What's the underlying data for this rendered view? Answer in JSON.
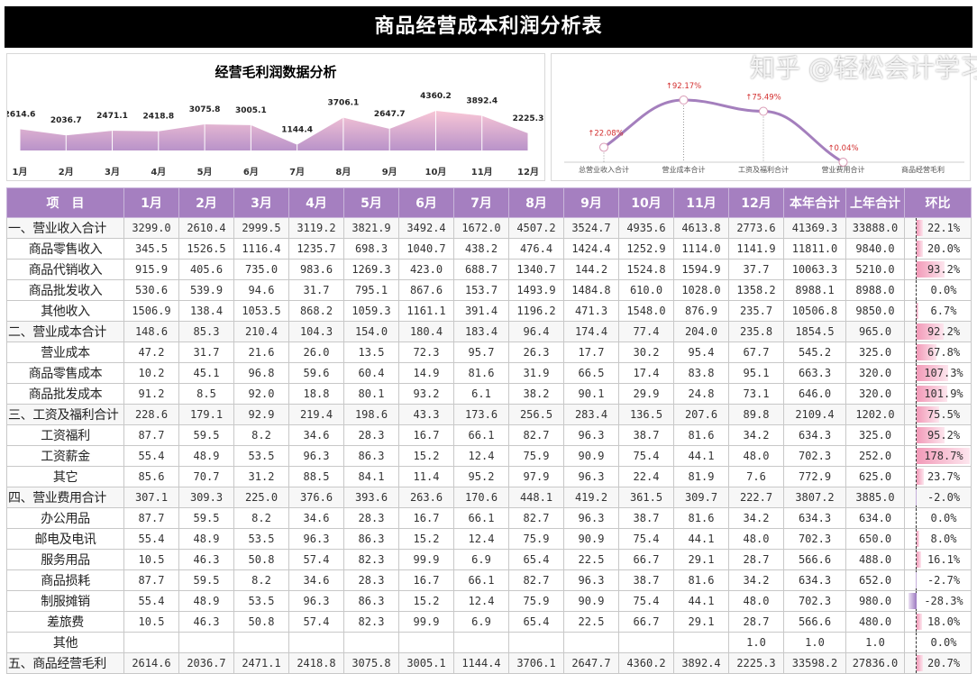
{
  "title": "商品经营成本利润分析表",
  "watermark": "知乎 @轻松会计学习",
  "colors": {
    "header": "#a57fc0",
    "area_top": "#f8c6d6",
    "area_bottom": "#b993c9",
    "line": "#a47fbd",
    "label_red": "#d32f2f",
    "bar_pos": "#f29ab8",
    "bar_neg": "#9c79c0"
  },
  "chart_data": [
    {
      "type": "area",
      "title": "经营毛利润数据分析",
      "categories": [
        "1月",
        "2月",
        "3月",
        "4月",
        "5月",
        "6月",
        "7月",
        "8月",
        "9月",
        "10月",
        "11月",
        "12月"
      ],
      "values": [
        2614.6,
        2036.7,
        2471.1,
        2418.8,
        3075.8,
        3005.1,
        1144.4,
        3706.1,
        2647.7,
        4360.2,
        3892.4,
        2225.3
      ],
      "data_labels": [
        "2614.6",
        "2036.7",
        "2471.1",
        "2418.8",
        "3075.8",
        "3005.1",
        "1144.4",
        "3706.1",
        "2647.7",
        "4360.2",
        "3892.4",
        "2225.3"
      ]
    },
    {
      "type": "line",
      "categories": [
        "总营业收入合计",
        "营业成本合计",
        "工资及福利合计",
        "营业费用合计",
        "商品经营毛利"
      ],
      "values": [
        22.08,
        92.17,
        75.49,
        0.04,
        null
      ],
      "data_labels": [
        "↑22.08%",
        "↑92.17%",
        "↑75.49%",
        "↑0.04%",
        ""
      ]
    }
  ],
  "table": {
    "headers": [
      "项　目",
      "1月",
      "2月",
      "3月",
      "4月",
      "5月",
      "6月",
      "7月",
      "8月",
      "9月",
      "10月",
      "11月",
      "12月",
      "本年合计",
      "上年合计",
      "环比"
    ],
    "rows": [
      {
        "label": "一、营业收入合计",
        "section": true,
        "values": [
          "3299.0",
          "2610.4",
          "2999.5",
          "3119.2",
          "3821.9",
          "3492.4",
          "1672.0",
          "4507.2",
          "3524.7",
          "4935.6",
          "4613.8",
          "2773.6",
          "41369.3",
          "33888.0"
        ],
        "ratio": "22.1%",
        "ratio_value": 22.1
      },
      {
        "label": "商品零售收入",
        "values": [
          "345.5",
          "1526.5",
          "1116.4",
          "1235.7",
          "698.3",
          "1040.7",
          "438.2",
          "476.4",
          "1424.4",
          "1252.9",
          "1114.0",
          "1141.9",
          "11811.0",
          "9840.0"
        ],
        "ratio": "20.0%",
        "ratio_value": 20.0
      },
      {
        "label": "商品代销收入",
        "values": [
          "915.9",
          "405.6",
          "735.0",
          "983.6",
          "1269.3",
          "423.0",
          "688.7",
          "1340.7",
          "144.2",
          "1524.8",
          "1594.9",
          "37.7",
          "10063.3",
          "5210.0"
        ],
        "ratio": "93.2%",
        "ratio_value": 93.2
      },
      {
        "label": "商品批发收入",
        "values": [
          "530.6",
          "539.9",
          "94.6",
          "31.7",
          "795.1",
          "867.6",
          "153.7",
          "1493.9",
          "1484.8",
          "610.0",
          "1028.0",
          "1358.2",
          "8988.1",
          "8988.0"
        ],
        "ratio": "0.0%",
        "ratio_value": 0.0
      },
      {
        "label": "其他收入",
        "values": [
          "1506.9",
          "138.4",
          "1053.5",
          "868.2",
          "1059.3",
          "1161.1",
          "391.4",
          "1196.2",
          "471.3",
          "1548.0",
          "876.9",
          "235.7",
          "10506.8",
          "9850.0"
        ],
        "ratio": "6.7%",
        "ratio_value": 6.7
      },
      {
        "label": "二、营业成本合计",
        "section": true,
        "values": [
          "148.6",
          "85.3",
          "210.4",
          "104.3",
          "154.0",
          "180.4",
          "183.4",
          "96.4",
          "174.4",
          "77.4",
          "204.0",
          "235.8",
          "1854.5",
          "965.0"
        ],
        "ratio": "92.2%",
        "ratio_value": 92.2
      },
      {
        "label": "营业成本",
        "values": [
          "47.2",
          "31.7",
          "21.6",
          "26.0",
          "13.5",
          "72.3",
          "95.7",
          "26.3",
          "17.7",
          "30.2",
          "95.4",
          "67.7",
          "545.2",
          "325.0"
        ],
        "ratio": "67.8%",
        "ratio_value": 67.8
      },
      {
        "label": "商品零售成本",
        "values": [
          "10.2",
          "45.1",
          "96.8",
          "59.6",
          "60.4",
          "14.9",
          "81.6",
          "31.9",
          "66.5",
          "17.4",
          "83.8",
          "95.1",
          "663.3",
          "320.0"
        ],
        "ratio": "107.3%",
        "ratio_value": 107.3
      },
      {
        "label": "商品批发成本",
        "values": [
          "91.2",
          "8.5",
          "92.0",
          "18.8",
          "80.1",
          "93.2",
          "6.1",
          "38.2",
          "90.1",
          "29.9",
          "24.8",
          "73.1",
          "646.0",
          "320.0"
        ],
        "ratio": "101.9%",
        "ratio_value": 101.9
      },
      {
        "label": "三、工资及福利合计",
        "section": true,
        "values": [
          "228.6",
          "179.1",
          "92.9",
          "219.4",
          "198.6",
          "43.3",
          "173.6",
          "256.5",
          "283.4",
          "136.5",
          "207.6",
          "89.8",
          "2109.4",
          "1202.0"
        ],
        "ratio": "75.5%",
        "ratio_value": 75.5
      },
      {
        "label": "工资福利",
        "values": [
          "87.7",
          "59.5",
          "8.2",
          "34.6",
          "28.3",
          "16.7",
          "66.1",
          "82.7",
          "96.3",
          "38.7",
          "81.6",
          "34.2",
          "634.3",
          "325.0"
        ],
        "ratio": "95.2%",
        "ratio_value": 95.2
      },
      {
        "label": "工资薪金",
        "values": [
          "55.4",
          "48.9",
          "53.5",
          "96.3",
          "86.3",
          "15.2",
          "12.4",
          "75.9",
          "90.9",
          "75.4",
          "44.1",
          "48.0",
          "702.3",
          "252.0"
        ],
        "ratio": "178.7%",
        "ratio_value": 178.7
      },
      {
        "label": "其它",
        "values": [
          "85.6",
          "70.7",
          "31.2",
          "88.5",
          "84.1",
          "11.4",
          "95.2",
          "97.9",
          "96.3",
          "22.4",
          "81.9",
          "7.6",
          "772.9",
          "625.0"
        ],
        "ratio": "23.7%",
        "ratio_value": 23.7
      },
      {
        "label": "四、营业费用合计",
        "section": true,
        "values": [
          "307.1",
          "309.3",
          "225.0",
          "376.6",
          "393.6",
          "263.6",
          "170.6",
          "448.1",
          "419.2",
          "361.5",
          "309.7",
          "222.7",
          "3807.2",
          "3885.0"
        ],
        "ratio": "-2.0%",
        "ratio_value": -2.0
      },
      {
        "label": "办公用品",
        "values": [
          "87.7",
          "59.5",
          "8.2",
          "34.6",
          "28.3",
          "16.7",
          "66.1",
          "82.7",
          "96.3",
          "38.7",
          "81.6",
          "34.2",
          "634.3",
          "634.0"
        ],
        "ratio": "0.0%",
        "ratio_value": 0.0
      },
      {
        "label": "邮电及电讯",
        "values": [
          "55.4",
          "48.9",
          "53.5",
          "96.3",
          "86.3",
          "15.2",
          "12.4",
          "75.9",
          "90.9",
          "75.4",
          "44.1",
          "48.0",
          "702.3",
          "650.0"
        ],
        "ratio": "8.0%",
        "ratio_value": 8.0
      },
      {
        "label": "服务用品",
        "values": [
          "10.5",
          "46.3",
          "50.8",
          "57.4",
          "82.3",
          "99.9",
          "6.9",
          "65.4",
          "22.5",
          "66.7",
          "29.1",
          "28.7",
          "566.6",
          "488.0"
        ],
        "ratio": "16.1%",
        "ratio_value": 16.1
      },
      {
        "label": "商品损耗",
        "values": [
          "87.7",
          "59.5",
          "8.2",
          "34.6",
          "28.3",
          "16.7",
          "66.1",
          "82.7",
          "96.3",
          "38.7",
          "81.6",
          "34.2",
          "634.3",
          "652.0"
        ],
        "ratio": "-2.7%",
        "ratio_value": -2.7
      },
      {
        "label": "制服摊销",
        "values": [
          "55.4",
          "48.9",
          "53.5",
          "96.3",
          "86.3",
          "15.2",
          "12.4",
          "75.9",
          "90.9",
          "75.4",
          "44.1",
          "48.0",
          "702.3",
          "980.0"
        ],
        "ratio": "-28.3%",
        "ratio_value": -28.3
      },
      {
        "label": "差旅费",
        "values": [
          "10.5",
          "46.3",
          "50.8",
          "57.4",
          "82.3",
          "99.9",
          "6.9",
          "65.4",
          "22.5",
          "66.7",
          "29.1",
          "28.7",
          "566.6",
          "480.0"
        ],
        "ratio": "18.0%",
        "ratio_value": 18.0
      },
      {
        "label": "其他",
        "values": [
          "",
          "",
          "",
          "",
          "",
          "",
          "",
          "",
          "",
          "",
          "",
          "1.0",
          "1.0",
          "1.0"
        ],
        "ratio": "0.0%",
        "ratio_value": 0.0
      },
      {
        "label": "五、商品经营毛利",
        "section": true,
        "values": [
          "2614.6",
          "2036.7",
          "2471.1",
          "2418.8",
          "3075.8",
          "3005.1",
          "1144.4",
          "3706.1",
          "2647.7",
          "4360.2",
          "3892.4",
          "2225.3",
          "33598.2",
          "27836.0"
        ],
        "ratio": "20.7%",
        "ratio_value": 20.7
      }
    ]
  }
}
